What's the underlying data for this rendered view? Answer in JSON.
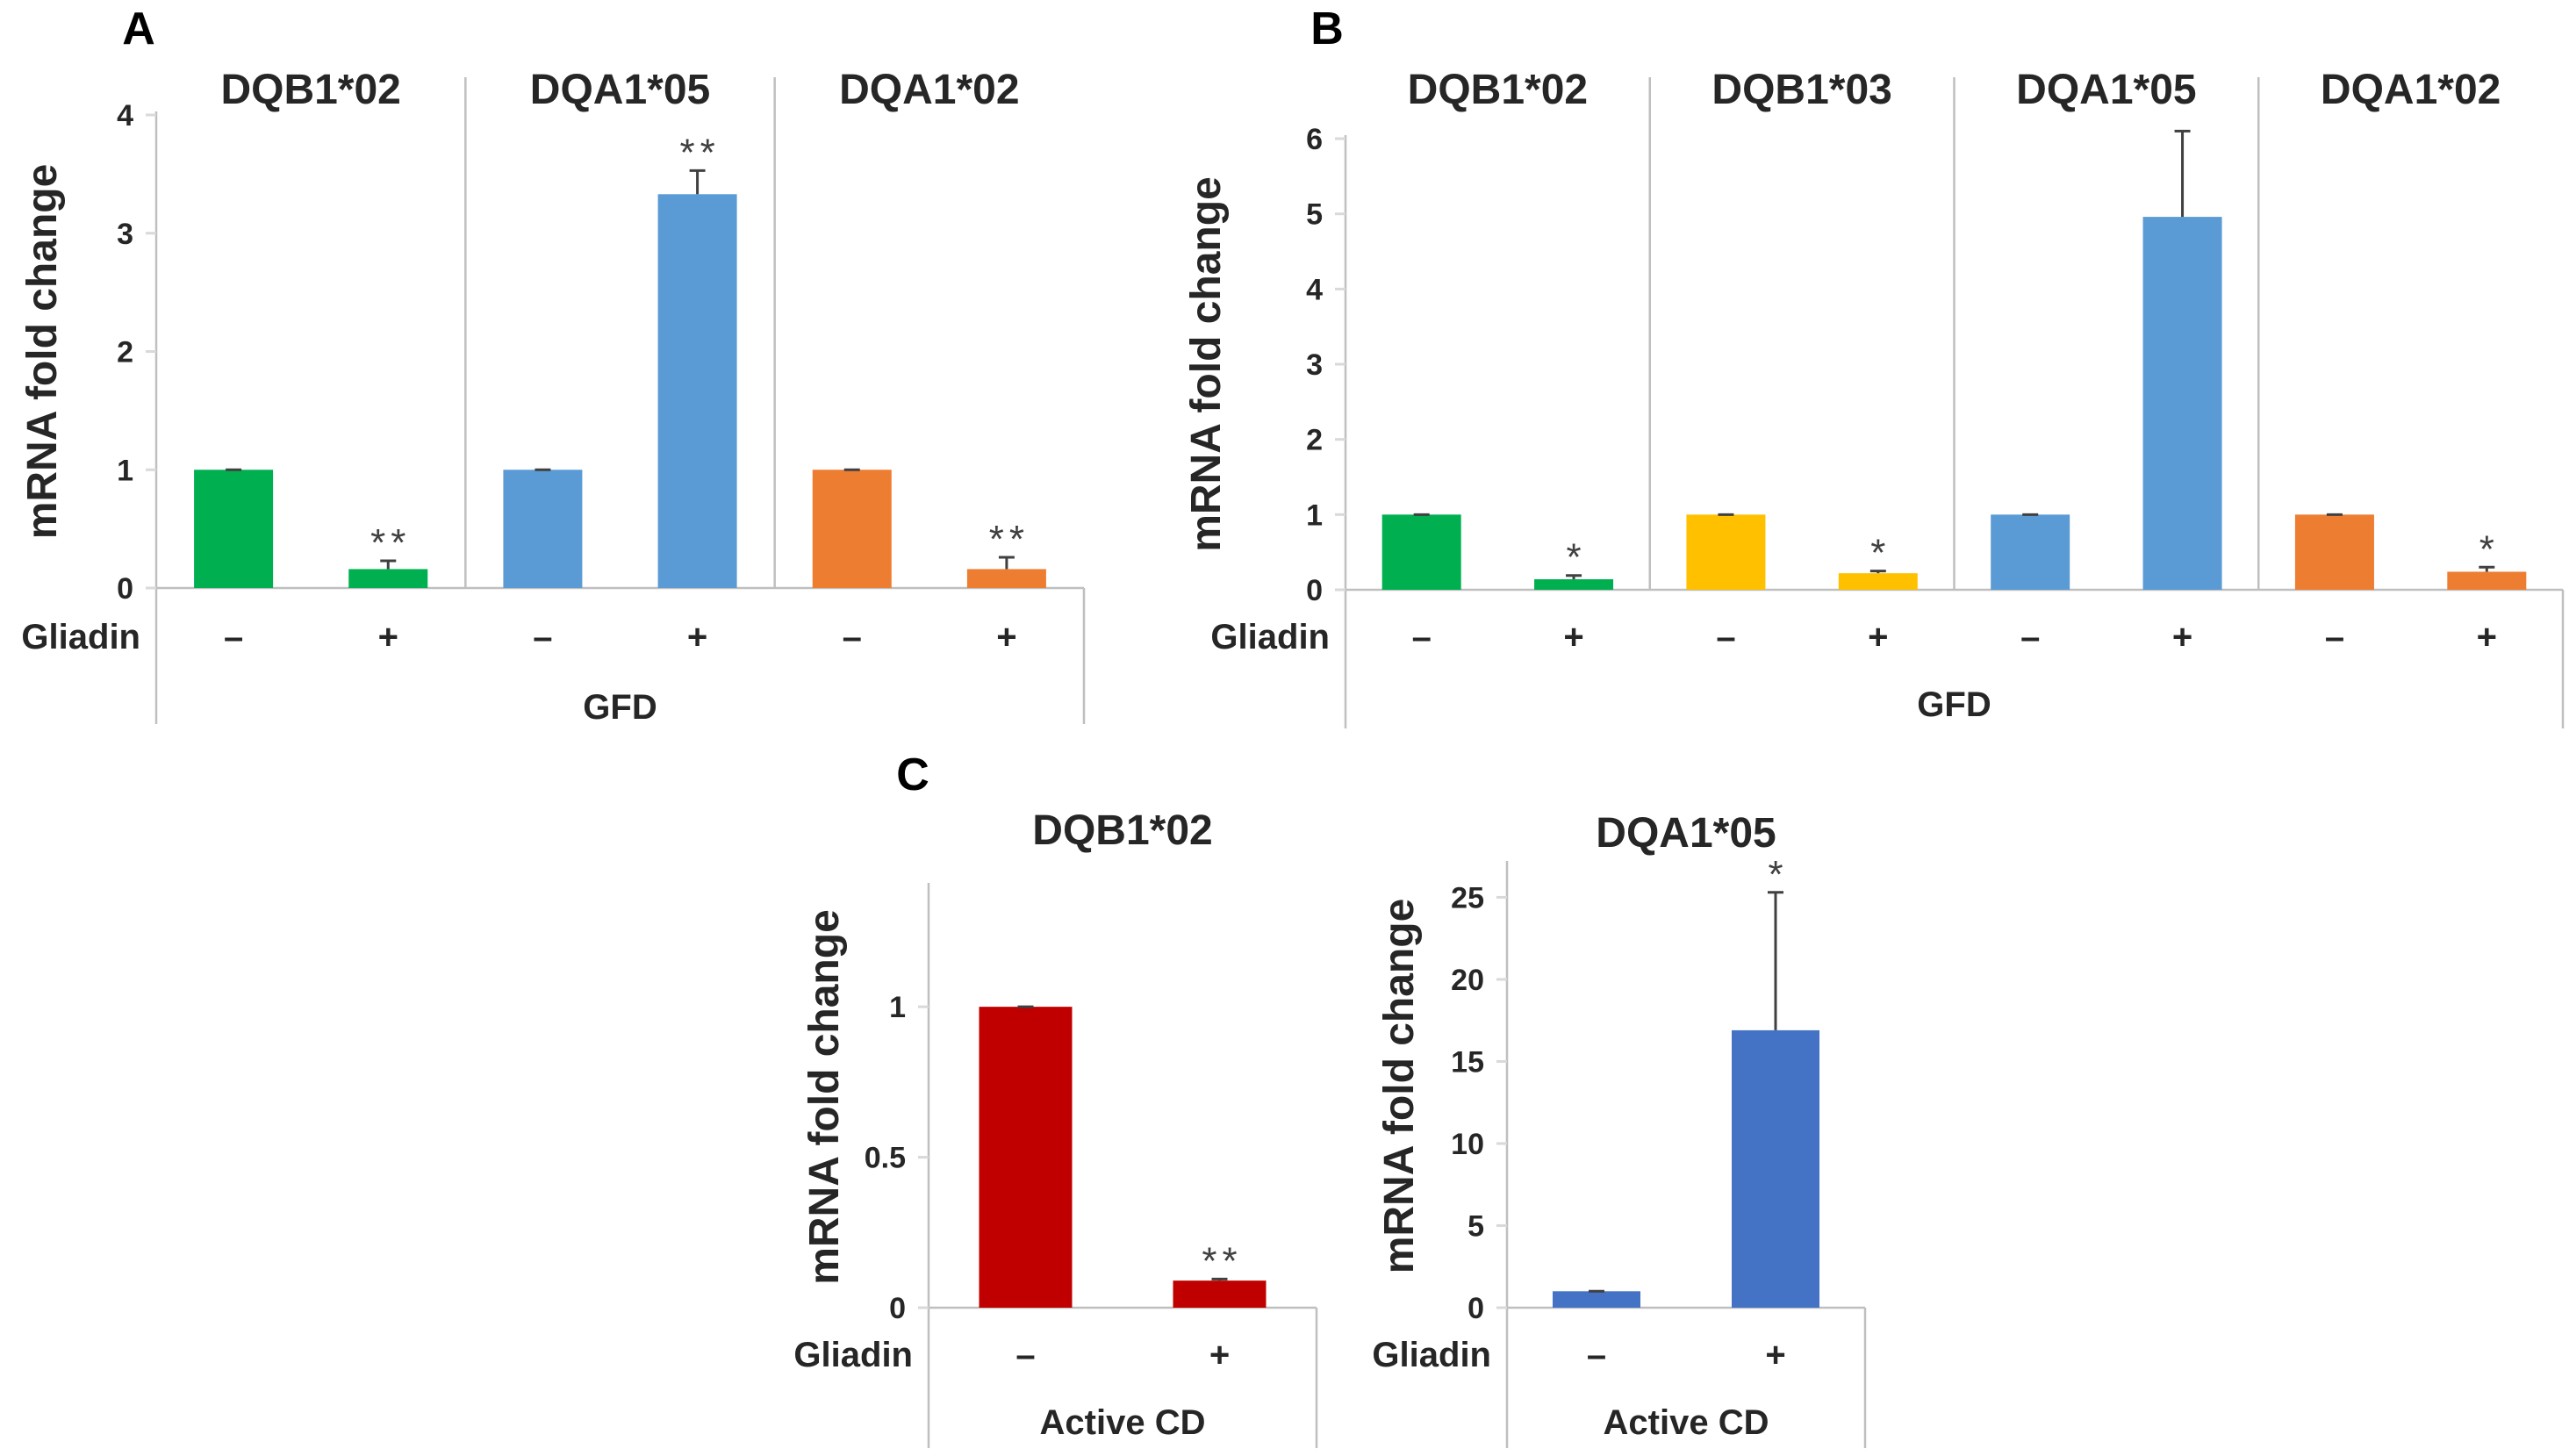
{
  "colors": {
    "green": "#00b050",
    "blue": "#5b9bd5",
    "orange": "#ed7d31",
    "yellow": "#ffc000",
    "red": "#c00000",
    "darkblue": "#4472c4"
  },
  "chart_data": [
    {
      "panel": "A",
      "type": "bar",
      "ylabel": "mRNA fold change",
      "ylim": [
        0,
        4
      ],
      "yticks": [
        0,
        1,
        2,
        3,
        4
      ],
      "row_label": "Gliadin",
      "group_label": "GFD",
      "conditions": [
        "–",
        "+"
      ],
      "genes": [
        {
          "name": "DQB1*02",
          "color": "green",
          "values": [
            1.0,
            0.16
          ],
          "errors": [
            0,
            0.07
          ],
          "sig": [
            "",
            "**"
          ]
        },
        {
          "name": "DQA1*05",
          "color": "blue",
          "values": [
            1.0,
            3.33
          ],
          "errors": [
            0,
            0.2
          ],
          "sig": [
            "",
            "**"
          ]
        },
        {
          "name": "DQA1*02",
          "color": "orange",
          "values": [
            1.0,
            0.16
          ],
          "errors": [
            0,
            0.1
          ],
          "sig": [
            "",
            "**"
          ]
        }
      ]
    },
    {
      "panel": "B",
      "type": "bar",
      "ylabel": "mRNA fold change",
      "ylim": [
        0,
        6
      ],
      "yticks": [
        0,
        1,
        2,
        3,
        4,
        5,
        6
      ],
      "row_label": "Gliadin",
      "group_label": "GFD",
      "conditions": [
        "–",
        "+"
      ],
      "genes": [
        {
          "name": "DQB1*02",
          "color": "green",
          "values": [
            1.0,
            0.14
          ],
          "errors": [
            0,
            0.05
          ],
          "sig": [
            "",
            "*"
          ]
        },
        {
          "name": "DQB1*03",
          "color": "yellow",
          "values": [
            1.0,
            0.22
          ],
          "errors": [
            0,
            0.03
          ],
          "sig": [
            "",
            "*"
          ]
        },
        {
          "name": "DQA1*05",
          "color": "blue",
          "values": [
            1.0,
            4.96
          ],
          "errors": [
            0,
            1.14
          ],
          "sig": [
            "",
            ""
          ]
        },
        {
          "name": "DQA1*02",
          "color": "orange",
          "values": [
            1.0,
            0.24
          ],
          "errors": [
            0,
            0.06
          ],
          "sig": [
            "",
            "*"
          ]
        }
      ]
    },
    {
      "panel": "C",
      "type": "bar",
      "ylabel": "mRNA fold change",
      "ylim": [
        0,
        1.4
      ],
      "yticks": [
        0,
        0.5,
        1
      ],
      "row_label": "Gliadin",
      "group_label": "Active CD",
      "conditions": [
        "–",
        "+"
      ],
      "genes": [
        {
          "name": "DQB1*02",
          "color": "red",
          "values": [
            1.0,
            0.09
          ],
          "errors": [
            0,
            0.005
          ],
          "sig": [
            "",
            "**"
          ]
        }
      ]
    },
    {
      "panel": "",
      "type": "bar",
      "ylabel": "mRNA fold change",
      "ylim": [
        0,
        27
      ],
      "yticks": [
        0,
        5,
        10,
        15,
        20,
        25
      ],
      "row_label": "Gliadin",
      "group_label": "Active CD",
      "conditions": [
        "–",
        "+"
      ],
      "genes": [
        {
          "name": "DQA1*05",
          "color": "darkblue",
          "values": [
            1.0,
            16.9
          ],
          "errors": [
            0,
            8.4
          ],
          "sig": [
            "",
            "*"
          ]
        }
      ]
    }
  ]
}
